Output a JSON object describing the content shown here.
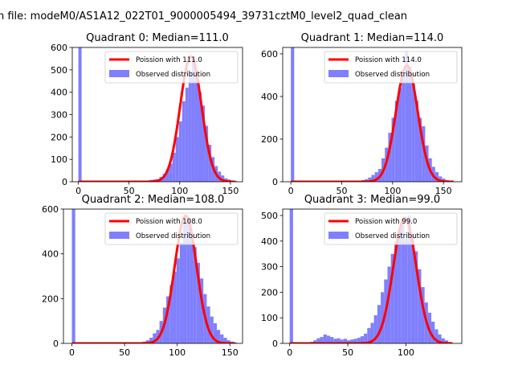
{
  "figure": {
    "suptitle": "n file: modeM0/AS1A12_022T01_9000005494_39731cztM0_level2_quad_clean"
  },
  "colors": {
    "observed": "#8080ff",
    "fit": "#ff0000",
    "axes": "#000000",
    "background": "#ffffff"
  },
  "chart_data": [
    {
      "type": "bar",
      "title": "Quadrant 0: Median=111.0",
      "xlim": [
        -6,
        162
      ],
      "ylim": [
        0,
        600
      ],
      "xticks": [
        0,
        50,
        100,
        150
      ],
      "yticks": [
        0,
        100,
        200,
        300,
        400,
        500,
        600
      ],
      "legend": [
        "Poission with 111.0",
        "Observed distribution"
      ],
      "legend_position": "top-right",
      "fit_mean": 111.0,
      "fit_peak": 560,
      "fit_range": [
        0,
        155
      ],
      "histogram": {
        "bin_width": 3.2,
        "bins": [
          [
            0,
            610
          ],
          [
            3.2,
            3
          ],
          [
            6.4,
            2
          ],
          [
            9.6,
            2
          ],
          [
            12.8,
            2
          ],
          [
            16,
            2
          ],
          [
            19.2,
            2
          ],
          [
            22.4,
            2
          ],
          [
            25.6,
            2
          ],
          [
            28.8,
            3
          ],
          [
            32,
            2
          ],
          [
            35.2,
            3
          ],
          [
            38.4,
            2
          ],
          [
            41.6,
            2
          ],
          [
            44.8,
            3
          ],
          [
            48,
            3
          ],
          [
            51.2,
            2
          ],
          [
            54.4,
            3
          ],
          [
            57.6,
            3
          ],
          [
            60.8,
            3
          ],
          [
            64,
            4
          ],
          [
            67.2,
            5
          ],
          [
            70.4,
            8
          ],
          [
            73.6,
            10
          ],
          [
            76.8,
            12
          ],
          [
            80,
            22
          ],
          [
            83.2,
            35
          ],
          [
            86.4,
            55
          ],
          [
            89.6,
            80
          ],
          [
            92.8,
            130
          ],
          [
            96,
            200
          ],
          [
            99.2,
            270
          ],
          [
            102.4,
            360
          ],
          [
            105.6,
            420
          ],
          [
            108.8,
            490
          ],
          [
            112,
            550
          ],
          [
            115.2,
            470
          ],
          [
            118.4,
            400
          ],
          [
            121.6,
            340
          ],
          [
            124.8,
            250
          ],
          [
            128,
            165
          ],
          [
            131.2,
            110
          ],
          [
            134.4,
            70
          ],
          [
            137.6,
            45
          ],
          [
            140.8,
            28
          ],
          [
            144,
            15
          ],
          [
            147.2,
            10
          ],
          [
            150.4,
            5
          ],
          [
            153.6,
            3
          ]
        ]
      }
    },
    {
      "type": "bar",
      "title": "Quadrant 1: Median=114.0",
      "xlim": [
        -8,
        168
      ],
      "ylim": [
        0,
        630
      ],
      "xticks": [
        0,
        50,
        100,
        150
      ],
      "yticks": [
        0,
        200,
        400,
        600
      ],
      "legend": [
        "Poission with 114.0",
        "Observed distribution"
      ],
      "legend_position": "top-right",
      "fit_mean": 114.0,
      "fit_peak": 545,
      "fit_range": [
        0,
        160
      ],
      "histogram": {
        "bin_width": 3.3,
        "bins": [
          [
            0,
            640
          ],
          [
            3.3,
            3
          ],
          [
            6.6,
            2
          ],
          [
            9.9,
            2
          ],
          [
            13.2,
            2
          ],
          [
            16.5,
            2
          ],
          [
            19.8,
            2
          ],
          [
            23.1,
            2
          ],
          [
            26.4,
            2
          ],
          [
            29.7,
            3
          ],
          [
            33,
            2
          ],
          [
            36.3,
            3
          ],
          [
            39.6,
            2
          ],
          [
            42.9,
            2
          ],
          [
            46.2,
            3
          ],
          [
            49.5,
            3
          ],
          [
            52.8,
            3
          ],
          [
            56.1,
            3
          ],
          [
            59.4,
            3
          ],
          [
            62.7,
            4
          ],
          [
            66,
            5
          ],
          [
            69.3,
            8
          ],
          [
            72.6,
            12
          ],
          [
            75.9,
            20
          ],
          [
            79.2,
            32
          ],
          [
            82.5,
            45
          ],
          [
            85.8,
            60
          ],
          [
            89.1,
            110
          ],
          [
            92.4,
            160
          ],
          [
            95.7,
            230
          ],
          [
            99,
            300
          ],
          [
            102.3,
            380
          ],
          [
            105.6,
            440
          ],
          [
            108.9,
            500
          ],
          [
            112.2,
            610
          ],
          [
            115.5,
            540
          ],
          [
            118.8,
            460
          ],
          [
            122.1,
            380
          ],
          [
            125.4,
            300
          ],
          [
            128.7,
            260
          ],
          [
            132,
            170
          ],
          [
            135.3,
            110
          ],
          [
            138.6,
            70
          ],
          [
            141.9,
            45
          ],
          [
            145.2,
            25
          ],
          [
            148.5,
            15
          ],
          [
            151.8,
            8
          ],
          [
            155.1,
            5
          ]
        ]
      }
    },
    {
      "type": "bar",
      "title": "Quadrant 2: Median=108.0",
      "xlim": [
        -8,
        162
      ],
      "ylim": [
        0,
        600
      ],
      "xticks": [
        0,
        50,
        100,
        150
      ],
      "yticks": [
        0,
        200,
        400,
        600
      ],
      "legend": [
        "Poission with 108.0",
        "Observed distribution"
      ],
      "legend_position": "top-right",
      "fit_mean": 108.0,
      "fit_peak": 570,
      "fit_range": [
        0,
        155
      ],
      "histogram": {
        "bin_width": 3.2,
        "bins": [
          [
            0,
            620
          ],
          [
            3.2,
            2
          ],
          [
            6.4,
            2
          ],
          [
            9.6,
            2
          ],
          [
            12.8,
            2
          ],
          [
            16,
            2
          ],
          [
            19.2,
            2
          ],
          [
            22.4,
            2
          ],
          [
            25.6,
            2
          ],
          [
            28.8,
            3
          ],
          [
            32,
            2
          ],
          [
            35.2,
            3
          ],
          [
            38.4,
            2
          ],
          [
            41.6,
            2
          ],
          [
            44.8,
            3
          ],
          [
            48,
            3
          ],
          [
            51.2,
            2
          ],
          [
            54.4,
            3
          ],
          [
            57.6,
            3
          ],
          [
            60.8,
            3
          ],
          [
            64,
            5
          ],
          [
            67.2,
            8
          ],
          [
            70.4,
            14
          ],
          [
            73.6,
            25
          ],
          [
            76.8,
            45
          ],
          [
            80,
            60
          ],
          [
            83.2,
            100
          ],
          [
            86.4,
            160
          ],
          [
            89.6,
            210
          ],
          [
            92.8,
            260
          ],
          [
            96,
            320
          ],
          [
            99.2,
            380
          ],
          [
            102.4,
            450
          ],
          [
            105.6,
            540
          ],
          [
            108.8,
            560
          ],
          [
            112,
            500
          ],
          [
            115.2,
            430
          ],
          [
            118.4,
            360
          ],
          [
            121.6,
            290
          ],
          [
            124.8,
            220
          ],
          [
            128,
            165
          ],
          [
            131.2,
            120
          ],
          [
            134.4,
            90
          ],
          [
            137.6,
            60
          ],
          [
            140.8,
            40
          ],
          [
            144,
            25
          ],
          [
            147.2,
            14
          ],
          [
            150.4,
            8
          ],
          [
            153.6,
            4
          ]
        ]
      }
    },
    {
      "type": "bar",
      "title": "Quadrant 3: Median=99.0",
      "xlim": [
        -6,
        148
      ],
      "ylim": [
        0,
        525
      ],
      "xticks": [
        0,
        50,
        100
      ],
      "yticks": [
        0,
        100,
        200,
        300,
        400,
        500
      ],
      "legend": [
        "Poission with 99.0",
        "Observed distribution"
      ],
      "legend_position": "top-right",
      "fit_mean": 99.0,
      "fit_peak": 490,
      "fit_range": [
        0,
        140
      ],
      "histogram": {
        "bin_width": 2.9,
        "bins": [
          [
            0,
            540
          ],
          [
            2.9,
            2
          ],
          [
            5.8,
            2
          ],
          [
            8.7,
            2
          ],
          [
            11.6,
            3
          ],
          [
            14.5,
            4
          ],
          [
            17.4,
            6
          ],
          [
            20.3,
            12
          ],
          [
            23.2,
            20
          ],
          [
            26.1,
            25
          ],
          [
            29,
            35
          ],
          [
            31.9,
            30
          ],
          [
            34.8,
            25
          ],
          [
            37.7,
            18
          ],
          [
            40.6,
            20
          ],
          [
            43.5,
            15
          ],
          [
            46.4,
            18
          ],
          [
            49.3,
            12
          ],
          [
            52.2,
            15
          ],
          [
            55.1,
            18
          ],
          [
            58,
            22
          ],
          [
            60.9,
            28
          ],
          [
            63.8,
            38
          ],
          [
            66.7,
            60
          ],
          [
            69.6,
            80
          ],
          [
            72.5,
            110
          ],
          [
            75.4,
            150
          ],
          [
            78.3,
            200
          ],
          [
            81.2,
            250
          ],
          [
            84.1,
            300
          ],
          [
            87,
            350
          ],
          [
            89.9,
            400
          ],
          [
            92.8,
            440
          ],
          [
            95.7,
            470
          ],
          [
            98.6,
            410
          ],
          [
            101.5,
            500
          ],
          [
            104.4,
            430
          ],
          [
            107.3,
            360
          ],
          [
            110.2,
            290
          ],
          [
            113.1,
            220
          ],
          [
            116,
            160
          ],
          [
            118.9,
            120
          ],
          [
            121.8,
            85
          ],
          [
            124.7,
            55
          ],
          [
            127.6,
            35
          ],
          [
            130.5,
            20
          ],
          [
            133.4,
            12
          ],
          [
            136.3,
            5
          ]
        ]
      }
    }
  ]
}
